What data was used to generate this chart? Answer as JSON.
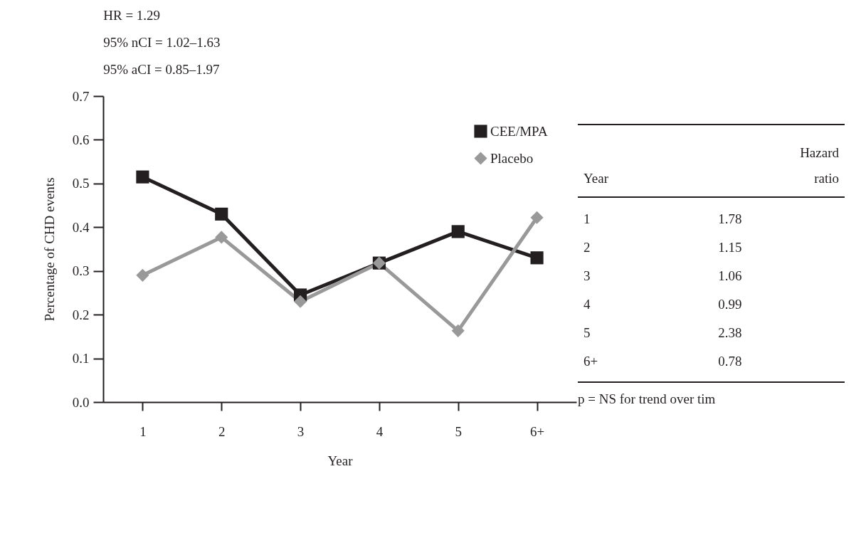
{
  "chart_data": {
    "type": "line",
    "annotations": [
      "HR = 1.29",
      "95% nCI = 1.02–1.63",
      "95% aCI = 0.85–1.97",
      "Year",
      "Hazard ratio",
      "1",
      "1.78",
      "2",
      "1.15",
      "3",
      "1.06",
      "4",
      "0.99",
      "5",
      "2.38",
      "6+",
      "0.78",
      "p = NS for trend over tim"
    ],
    "xlabel": "Year",
    "ylabel": "Percentage of CHD events",
    "categories": [
      "1",
      "2",
      "3",
      "4",
      "5",
      "6+"
    ],
    "series": [
      {
        "name": "CEE/MPA",
        "color": "#231f20",
        "marker": "square",
        "values": [
          0.515,
          0.43,
          0.245,
          0.318,
          0.39,
          0.33
        ]
      },
      {
        "name": "Placebo",
        "color": "#999999",
        "marker": "diamond",
        "values": [
          0.29,
          0.377,
          0.23,
          0.318,
          0.163,
          0.422
        ]
      }
    ],
    "ylim": [
      0,
      0.7
    ],
    "yticks": [
      {
        "value": 0,
        "label": "0.0"
      },
      0.1,
      0.2,
      0.3,
      0.4,
      0.5,
      0.6,
      0.7
    ],
    "grid": false,
    "legend": "top right",
    "line_style": "solid"
  }
}
